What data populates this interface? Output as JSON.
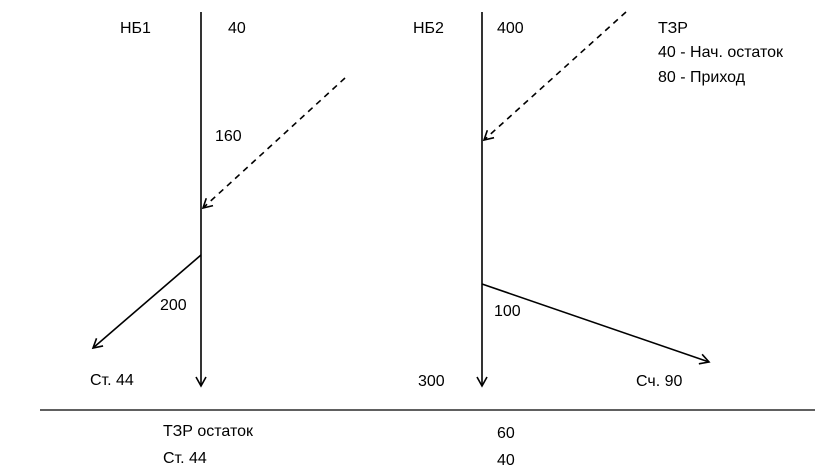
{
  "left_account": {
    "name": "НБ1",
    "opening": "40",
    "inflow": "160",
    "outflow": "200",
    "closing_target": "Ст. 44"
  },
  "right_account": {
    "name": "НБ2",
    "opening": "400",
    "outflow": "100",
    "closing": "300",
    "outflow_target": "Сч. 90"
  },
  "legend": {
    "title": "ТЗР",
    "line1": "40 - Нач. остаток",
    "line2": "80 - Приход"
  },
  "summary": {
    "row1_label": "ТЗР остаток",
    "row1_value": "60",
    "row2_label": "Ст. 44",
    "row2_value": "40"
  }
}
